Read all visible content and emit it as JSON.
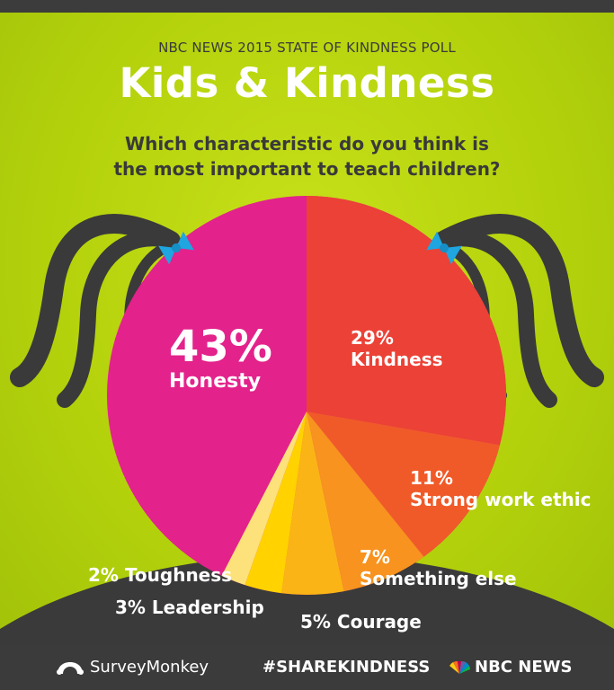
{
  "header": {
    "kicker": "NBC NEWS 2015 STATE OF KINDNESS POLL",
    "title": "Kids & Kindness",
    "question_line1": "Which characteristic do you think is",
    "question_line2": "the most important to teach children?"
  },
  "chart_data": {
    "type": "pie",
    "slices": [
      {
        "label": "Honesty",
        "pct_text": "43%",
        "value": 43,
        "color": "#e3228b"
      },
      {
        "label": "Kindness",
        "pct_text": "29%",
        "value": 29,
        "color": "#ec4136"
      },
      {
        "label": "Strong work ethic",
        "pct_text": "11%",
        "value": 11,
        "color": "#f05a28"
      },
      {
        "label": "Something else",
        "pct_text": "7%",
        "value": 7,
        "color": "#f7931e"
      },
      {
        "label": "Courage",
        "pct_text": "5% Courage",
        "value": 5,
        "color": "#fbb415"
      },
      {
        "label": "Leadership",
        "pct_text": "3% Leadership",
        "value": 3,
        "color": "#ffd200"
      },
      {
        "label": "Toughness",
        "pct_text": "2% Toughness",
        "value": 2,
        "color": "#fde17a"
      }
    ]
  },
  "colors": {
    "background": "#b6d30e",
    "hair": "#3a3a3a",
    "bow": "#1fa5e0",
    "footer": "#3b3b3b"
  },
  "footer": {
    "surveymonkey": "SurveyMonkey",
    "hashtag": "#SHAREKINDNESS",
    "nbc": "NBC NEWS"
  }
}
